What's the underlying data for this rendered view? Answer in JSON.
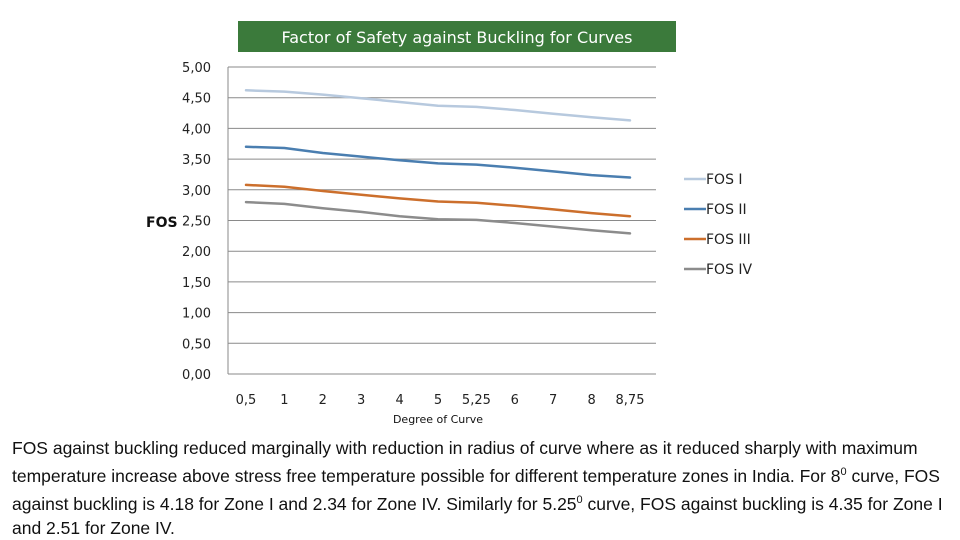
{
  "chart_data": {
    "type": "line",
    "title": "Factor of Safety against Buckling for Curves",
    "xlabel": "Degree of Curve",
    "ylabel": "FOS",
    "categories": [
      "0,5",
      "1",
      "2",
      "3",
      "4",
      "5",
      "5,25",
      "6",
      "7",
      "8",
      "8,75"
    ],
    "y_ticks": [
      "0,00",
      "0,50",
      "1,00",
      "1,50",
      "2,00",
      "2,50",
      "3,00",
      "3,50",
      "4,00",
      "4,50",
      "5,00"
    ],
    "ylim": [
      0,
      5
    ],
    "grid": true,
    "legend_position": "right",
    "series": [
      {
        "name": "FOS I",
        "color": "#b7c9de",
        "values": [
          4.62,
          4.6,
          4.55,
          4.49,
          4.43,
          4.37,
          4.35,
          4.3,
          4.24,
          4.18,
          4.13
        ]
      },
      {
        "name": "FOS II",
        "color": "#4a7eb0",
        "values": [
          3.7,
          3.68,
          3.6,
          3.54,
          3.48,
          3.43,
          3.41,
          3.36,
          3.3,
          3.24,
          3.2
        ]
      },
      {
        "name": "FOS III",
        "color": "#cc6f2c",
        "values": [
          3.08,
          3.05,
          2.98,
          2.92,
          2.86,
          2.81,
          2.79,
          2.74,
          2.68,
          2.62,
          2.57
        ]
      },
      {
        "name": "FOS IV",
        "color": "#8c8c8c",
        "values": [
          2.8,
          2.77,
          2.7,
          2.64,
          2.57,
          2.52,
          2.51,
          2.46,
          2.4,
          2.34,
          2.29
        ]
      }
    ],
    "title_bg": "#3b7a3b"
  },
  "caption": {
    "part1": "FOS against buckling reduced marginally with reduction in radius of curve where as it reduced sharply with maximum temperature increase above stress free temperature possible for different temperature zones in India. For 8",
    "sup1": "0",
    "part2": " curve, FOS against buckling is 4.18 for Zone I and 2.34 for Zone IV. Similarly for 5.25",
    "sup2": "0",
    "part3": " curve, FOS against buckling is 4.35 for Zone I and 2.51 for Zone IV."
  }
}
